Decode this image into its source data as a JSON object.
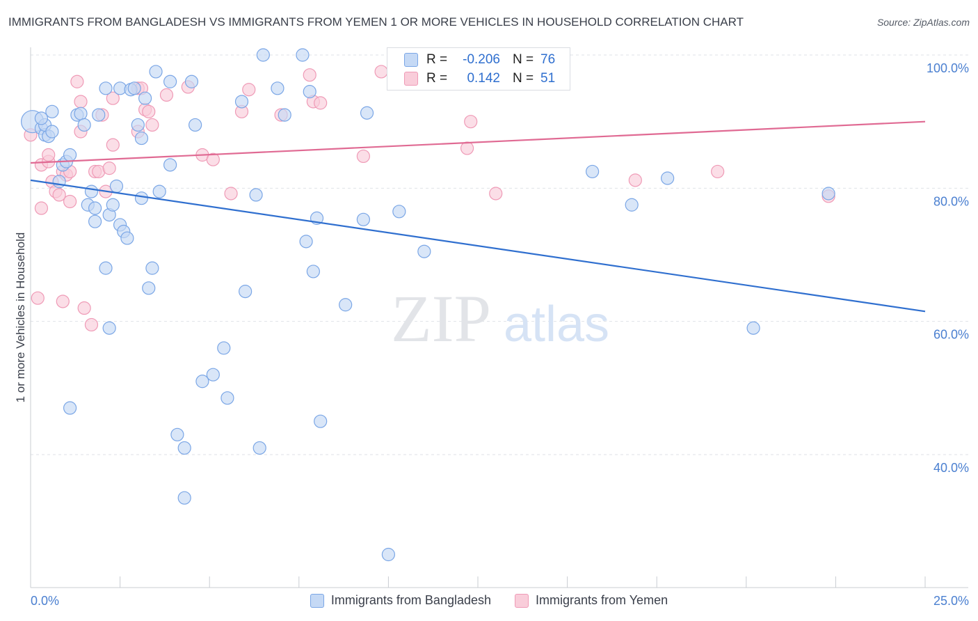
{
  "header": {
    "title": "IMMIGRANTS FROM BANGLADESH VS IMMIGRANTS FROM YEMEN 1 OR MORE VEHICLES IN HOUSEHOLD CORRELATION CHART",
    "source": "Source: ZipAtlas.com"
  },
  "watermark": {
    "zip": "ZIP",
    "atlas": "atlas"
  },
  "stats": [
    {
      "r_label": "R =",
      "r_value": "-0.206",
      "n_label": "N =",
      "n_value": "76",
      "color": "#7aa6e6",
      "fill": "#c5d9f5"
    },
    {
      "r_label": "R =",
      "r_value": "0.142",
      "n_label": "N =",
      "n_value": "51",
      "color": "#ef9ab6",
      "fill": "#f9cdda"
    }
  ],
  "chart_data": {
    "type": "scatter",
    "ylabel": "1 or more Vehicles in Household",
    "xlim": [
      0,
      25
    ],
    "ylim": [
      20,
      102
    ],
    "x_tick_labels": [
      "0.0%",
      "25.0%"
    ],
    "y_ticks": [
      {
        "value": 100,
        "label": "100.0%"
      },
      {
        "value": 80,
        "label": "80.0%"
      },
      {
        "value": 60,
        "label": "60.0%"
      },
      {
        "value": 40,
        "label": "40.0%"
      }
    ],
    "grid": true,
    "legend_position": "bottom",
    "series": [
      {
        "name": "Immigrants from Bangladesh",
        "color": "#7aa6e6",
        "fill": "#c5d9f5",
        "line_color": "#2f6fcf",
        "trend": {
          "x": [
            0,
            25
          ],
          "y": [
            81.2,
            61.5
          ]
        },
        "points": [
          [
            0.05,
            90
          ],
          [
            0.3,
            89
          ],
          [
            0.4,
            88
          ],
          [
            0.5,
            87.8
          ],
          [
            0.4,
            89.5
          ],
          [
            0.6,
            91.5
          ],
          [
            0.6,
            88.5
          ],
          [
            0.8,
            81
          ],
          [
            0.9,
            83.5
          ],
          [
            1.0,
            84
          ],
          [
            1.1,
            85
          ],
          [
            1.3,
            91
          ],
          [
            1.4,
            91.2
          ],
          [
            1.5,
            89.5
          ],
          [
            1.6,
            77.5
          ],
          [
            1.7,
            79.5
          ],
          [
            1.8,
            75
          ],
          [
            1.8,
            77
          ],
          [
            1.9,
            91
          ],
          [
            2.1,
            95
          ],
          [
            2.2,
            76
          ],
          [
            2.2,
            59
          ],
          [
            2.3,
            77.5
          ],
          [
            2.4,
            80.3
          ],
          [
            2.5,
            95
          ],
          [
            2.5,
            74.5
          ],
          [
            2.6,
            73.5
          ],
          [
            2.7,
            72.5
          ],
          [
            2.8,
            94.8
          ],
          [
            2.9,
            95
          ],
          [
            3.0,
            89.5
          ],
          [
            3.1,
            87.5
          ],
          [
            3.1,
            78.5
          ],
          [
            3.2,
            93.5
          ],
          [
            3.3,
            65
          ],
          [
            3.4,
            68
          ],
          [
            3.5,
            97.5
          ],
          [
            3.6,
            79.5
          ],
          [
            3.9,
            96
          ],
          [
            3.9,
            83.5
          ],
          [
            4.1,
            43
          ],
          [
            4.3,
            41
          ],
          [
            4.3,
            33.5
          ],
          [
            4.5,
            96
          ],
          [
            4.6,
            89.5
          ],
          [
            4.8,
            51
          ],
          [
            5.1,
            52
          ],
          [
            5.4,
            56
          ],
          [
            5.5,
            48.5
          ],
          [
            5.9,
            93
          ],
          [
            6.0,
            64.5
          ],
          [
            6.3,
            79
          ],
          [
            6.4,
            41
          ],
          [
            6.5,
            100
          ],
          [
            6.9,
            95
          ],
          [
            7.1,
            91
          ],
          [
            7.6,
            100
          ],
          [
            7.7,
            72
          ],
          [
            7.8,
            94.5
          ],
          [
            7.9,
            67.5
          ],
          [
            8.0,
            75.5
          ],
          [
            8.1,
            45
          ],
          [
            8.8,
            62.5
          ],
          [
            9.3,
            75.3
          ],
          [
            9.4,
            91.3
          ],
          [
            10.0,
            25
          ],
          [
            10.3,
            76.5
          ],
          [
            11.0,
            70.5
          ],
          [
            15.7,
            82.5
          ],
          [
            16.8,
            77.5
          ],
          [
            17.8,
            81.5
          ],
          [
            20.2,
            59
          ],
          [
            22.3,
            79.2
          ],
          [
            1.1,
            47
          ],
          [
            2.1,
            68
          ],
          [
            0.3,
            90.5
          ]
        ]
      },
      {
        "name": "Immigrants from Yemen",
        "color": "#ef9ab6",
        "fill": "#f9cdda",
        "line_color": "#e06a93",
        "trend": {
          "x": [
            0,
            25
          ],
          "y": [
            83.8,
            90.0
          ]
        },
        "points": [
          [
            0.0,
            88
          ],
          [
            0.2,
            63.5
          ],
          [
            0.3,
            83.5
          ],
          [
            0.3,
            77
          ],
          [
            0.5,
            84
          ],
          [
            0.5,
            85
          ],
          [
            0.6,
            81
          ],
          [
            0.7,
            79.5
          ],
          [
            0.8,
            79
          ],
          [
            0.9,
            82.5
          ],
          [
            0.9,
            63
          ],
          [
            1.0,
            82
          ],
          [
            1.1,
            78
          ],
          [
            1.1,
            82.5
          ],
          [
            1.3,
            96
          ],
          [
            1.4,
            88.5
          ],
          [
            1.4,
            93
          ],
          [
            1.5,
            62
          ],
          [
            1.7,
            59.5
          ],
          [
            1.8,
            82.5
          ],
          [
            1.9,
            82.5
          ],
          [
            2.0,
            91
          ],
          [
            2.1,
            79.5
          ],
          [
            2.2,
            83
          ],
          [
            2.3,
            93.5
          ],
          [
            2.3,
            86.5
          ],
          [
            3.0,
            95
          ],
          [
            3.0,
            88.5
          ],
          [
            3.2,
            91.8
          ],
          [
            3.4,
            89.5
          ],
          [
            3.3,
            91.5
          ],
          [
            3.8,
            94
          ],
          [
            4.4,
            95.2
          ],
          [
            4.8,
            85
          ],
          [
            5.1,
            84.3
          ],
          [
            5.6,
            79.2
          ],
          [
            5.9,
            91.5
          ],
          [
            6.1,
            94.8
          ],
          [
            7.0,
            91
          ],
          [
            7.8,
            97
          ],
          [
            7.9,
            93
          ],
          [
            8.1,
            92.8
          ],
          [
            9.3,
            84.8
          ],
          [
            9.8,
            97.5
          ],
          [
            12.2,
            86
          ],
          [
            12.3,
            90
          ],
          [
            13.0,
            79.2
          ],
          [
            16.9,
            81.2
          ],
          [
            19.2,
            82.5
          ],
          [
            22.3,
            78.8
          ],
          [
            3.1,
            95
          ]
        ]
      }
    ]
  }
}
